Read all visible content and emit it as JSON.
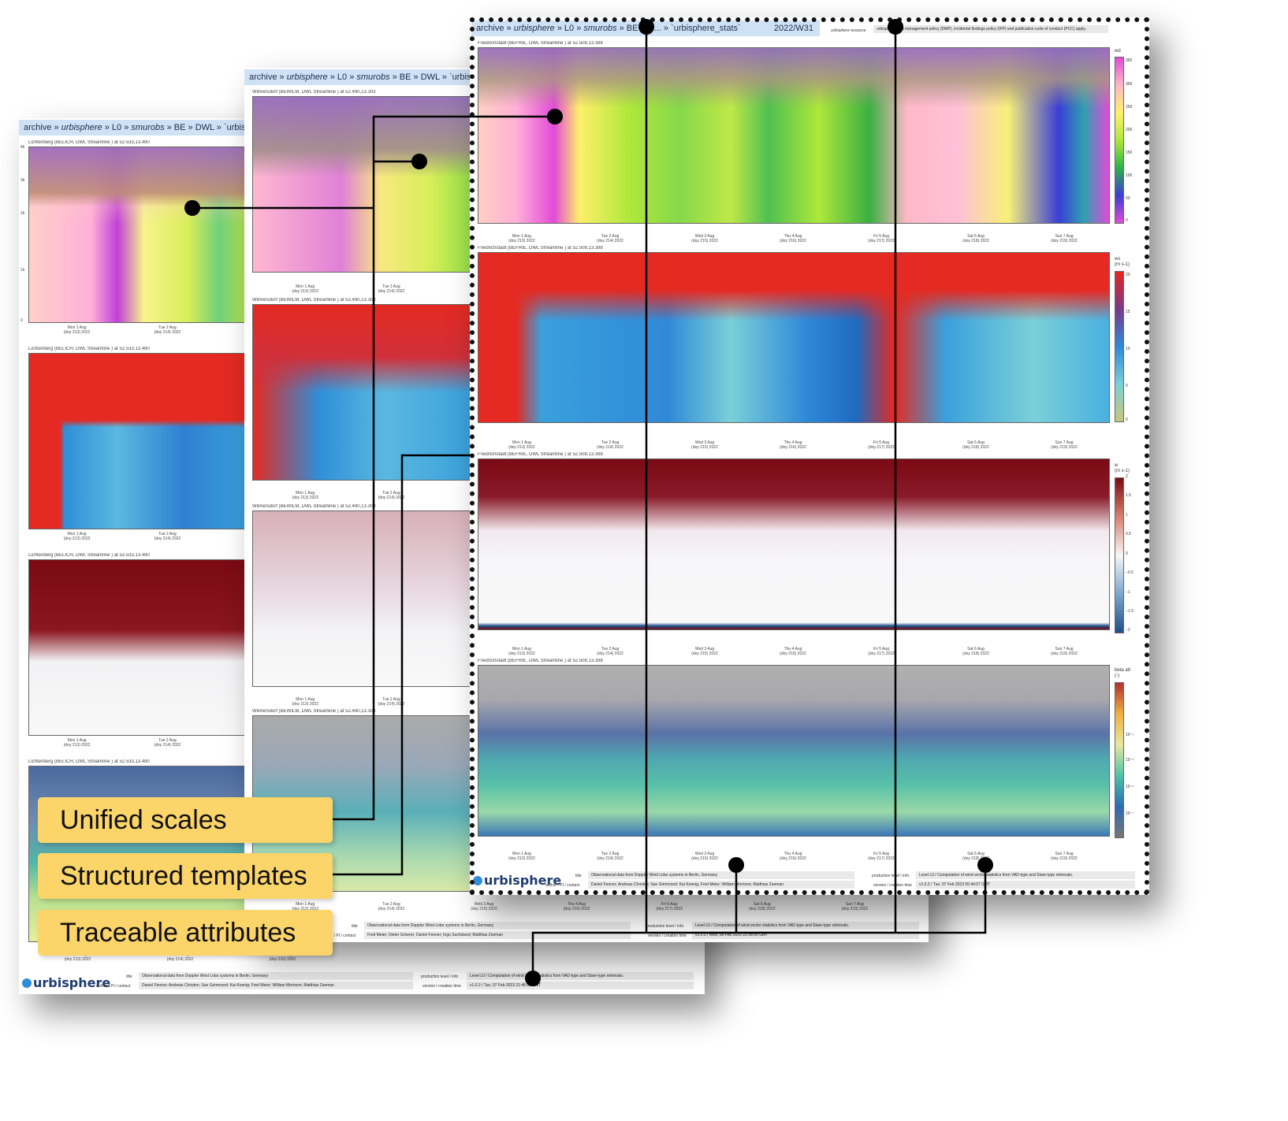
{
  "colors": {
    "callout": "#fbd46a",
    "breadcrumb": "#cfe2f5",
    "wd_ramp": [
      "#e14bd8",
      "#ffb8c8",
      "#fff06a",
      "#aee83a",
      "#2fb14a",
      "#3a3ed6",
      "#e14bd8"
    ],
    "ws_ramp": [
      "#e62420",
      "#7a3a8a",
      "#2f89d8",
      "#7ad0d8",
      "#c8c67a"
    ],
    "w_ramp": [
      "#7b0a14",
      "#f7f7f7",
      "#1f4e8a"
    ],
    "beta_ramp": [
      "#b33030",
      "#f0b040",
      "#e6e8a0",
      "#4fc3a8",
      "#2b6cb4",
      "#777777"
    ]
  },
  "callouts": {
    "unified": "Unified scales",
    "structured": "Structured templates",
    "traceable": "Traceable attributes"
  },
  "front": {
    "breadcrumb": {
      "prefix": "archive » ",
      "urbi": "urbisphere",
      "mid": " » L0 » ",
      "smurobs": "smurobs",
      "rest": " » BE » D... » `urbisphere_stats`"
    },
    "week": "2022/W31",
    "resource": "urbisphere resource",
    "policy": "urbisphere data management policy (DMP), incidental findings policy (IFP) and publication code of conduct (PCC) apply.",
    "plot_title": "Friedrichstadt (BEFRIE, DWL Streamline ) at 52.508,13.398",
    "days": [
      "Mon 1 Aug\n(doy 213) 2022",
      "Tue 2 Aug\n(doy 214) 2022",
      "Wed 3 Aug\n(doy 215) 2022",
      "Thu 4 Aug\n(doy 216) 2022",
      "Fri 5 Aug\n(doy 217) 2022",
      "Sat 6 Aug\n(doy 218) 2022",
      "Sun 7 Aug\n(doy 219) 2022"
    ],
    "cb_wd_label": "wd",
    "cb_wd_ticks": [
      "350",
      "300",
      "250",
      "200",
      "150",
      "100",
      "50",
      "0"
    ],
    "cb_ws_label": "ws\n(m s-1)",
    "cb_ws_ticks": [
      "20",
      "15",
      "10",
      "5",
      "0"
    ],
    "cb_w_label": "w\n(m s-1)",
    "cb_w_ticks": [
      "2",
      "1.5",
      "1",
      "0.5",
      "0",
      "−0.5",
      "−1",
      "−1.5",
      "−2"
    ],
    "cb_beta_label": "beta att\n(-)",
    "cb_beta_ticks": [
      "10⁻⁴",
      "10⁻⁵",
      "10⁻⁶",
      "10⁻⁷"
    ],
    "logo": "urbisphere",
    "title_label": "title",
    "title_value": "Observational data from Doppler Wind Lidar systems in Berlin, Germany",
    "author_label": "author / PI / contact",
    "author_value": "Daniel Fenner; Andreas Christen; Sue Grimmond; Kai Koenig; Fred Meier; William Morrison; Matthias Zeeman",
    "level_label": "production level / info",
    "level_value": "Level L0 / Computation of wind vector statistics from VAD-type and Stare-type retrievals.",
    "version_label": "version / creation time",
    "version_value": "v1.0.2 / Tue, 07 Feb 2023 05:44:07 GMT"
  },
  "middle": {
    "breadcrumb": {
      "prefix": "archive » ",
      "urbi": "urbisphere",
      "mid": " » L0 » ",
      "smurobs": "smurobs",
      "rest": " » BE » DWL » `urbisph"
    },
    "plot_title": "Wilmersdorf (BEWILM, DWL Streamline ) at 52.490,13.303",
    "days": [
      "Mon 1 Aug\n(doy 213) 2022",
      "Tue 2 Aug\n(doy 214) 2022"
    ],
    "bottom_days": [
      "Wed 3 Aug\n(doy 215) 2022",
      "Thu 4 Aug\n(doy 216) 2022",
      "Fri 5 Aug\n(doy 217) 2022",
      "Sat 6 Aug\n(doy 218) 2022",
      "Sun 7 Aug\n(doy 219) 2022"
    ],
    "title_label": "title",
    "title_value": "Observational data from Doppler Wind Lidar systems in Berlin, Germany",
    "author_label": "author / PI / contact",
    "author_value": "Fred Meier; Dieter Scherer; Daniel Fenner; Ingo Suchsland; Matthias Zeeman",
    "level_label": "production level / info",
    "level_value": "Level L0 / Computation of wind vector statistics from VAD-type and Stare-type retrievals.",
    "version_label": "version / creation time",
    "version_value": "v1.0.2 / Wed, 08 Feb 2023 22:38:55 GMT"
  },
  "back": {
    "breadcrumb": {
      "prefix": "archive » ",
      "urbi": "urbisphere",
      "mid": " » L0 » ",
      "smurobs": "smurobs",
      "rest": " » BE » DWL » `urbisph"
    },
    "plot_title": "Lichtenberg (BELICH, DWL Streamline ) at 52.533,13.490",
    "days": [
      "Mon 1 Aug\n(doy 213) 2022",
      "Tue 2 Aug\n(doy 214) 2022"
    ],
    "bottom_days": [
      "Mon 1 Aug\n(doy 213) 2022",
      "Tue 2 Aug\n(doy 214) 2022",
      "Wed 3 Aug\n(doy 215) 2022"
    ],
    "yticks": [
      "4k",
      "3k",
      "2k",
      "1k",
      "0"
    ],
    "logo": "urbisphere",
    "title_label": "title",
    "title_value": "Observational data from Doppler Wind Lidar systems in Berlin, Germany",
    "author_label": "author / PI / contact",
    "author_value": "Daniel Fenner; Andreas Christen; Sue Grimmond; Kai Koenig; Fred Meier; William Morrison; Matthias Zeeman",
    "level_label": "production level / info",
    "level_value": "Level L0 / Computation of wind vector statistics from VAD-type and Stare-type retrievals.",
    "version_label": "version / creation time",
    "version_value": "v1.0.2 / Tue, 07 Feb 2023 21:46:59 GMT"
  }
}
